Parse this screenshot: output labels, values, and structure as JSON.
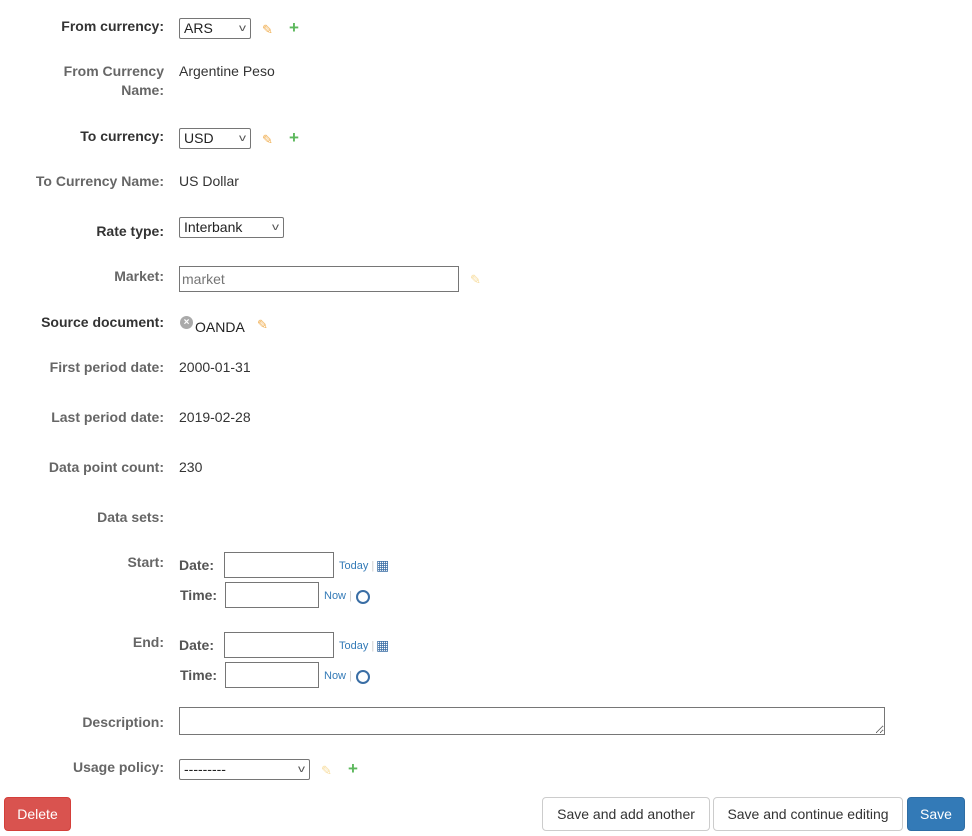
{
  "fields": {
    "from_currency": {
      "label": "From currency:",
      "value": "ARS"
    },
    "from_currency_name": {
      "label1": "From Currency",
      "label2": "Name:",
      "value": "Argentine Peso"
    },
    "to_currency": {
      "label": "To currency:",
      "value": "USD"
    },
    "to_currency_name": {
      "label": "To Currency Name:",
      "value": "US Dollar"
    },
    "rate_type": {
      "label": "Rate type:",
      "value": "Interbank"
    },
    "market": {
      "label": "Market:",
      "placeholder": "market"
    },
    "source_document": {
      "label": "Source document:",
      "value": "OANDA"
    },
    "first_period_date": {
      "label": "First period date:",
      "value": "2000-01-31"
    },
    "last_period_date": {
      "label": "Last period date:",
      "value": "2019-02-28"
    },
    "data_point_count": {
      "label": "Data point count:",
      "value": "230"
    },
    "data_sets": {
      "label": "Data sets:"
    },
    "start": {
      "label": "Start:",
      "date_label": "Date:",
      "time_label": "Time:",
      "today": "Today",
      "now": "Now"
    },
    "end": {
      "label": "End:",
      "date_label": "Date:",
      "time_label": "Time:",
      "today": "Today",
      "now": "Now"
    },
    "description": {
      "label": "Description:"
    },
    "usage_policy": {
      "label": "Usage policy:",
      "value": "---------"
    }
  },
  "buttons": {
    "delete": "Delete",
    "save_add": "Save and add another",
    "save_continue": "Save and continue editing",
    "save": "Save"
  },
  "colors": {
    "delete": "#d9534f",
    "save": "#337ab7",
    "edit": "#f0ad4e",
    "add": "#5cb85c"
  }
}
